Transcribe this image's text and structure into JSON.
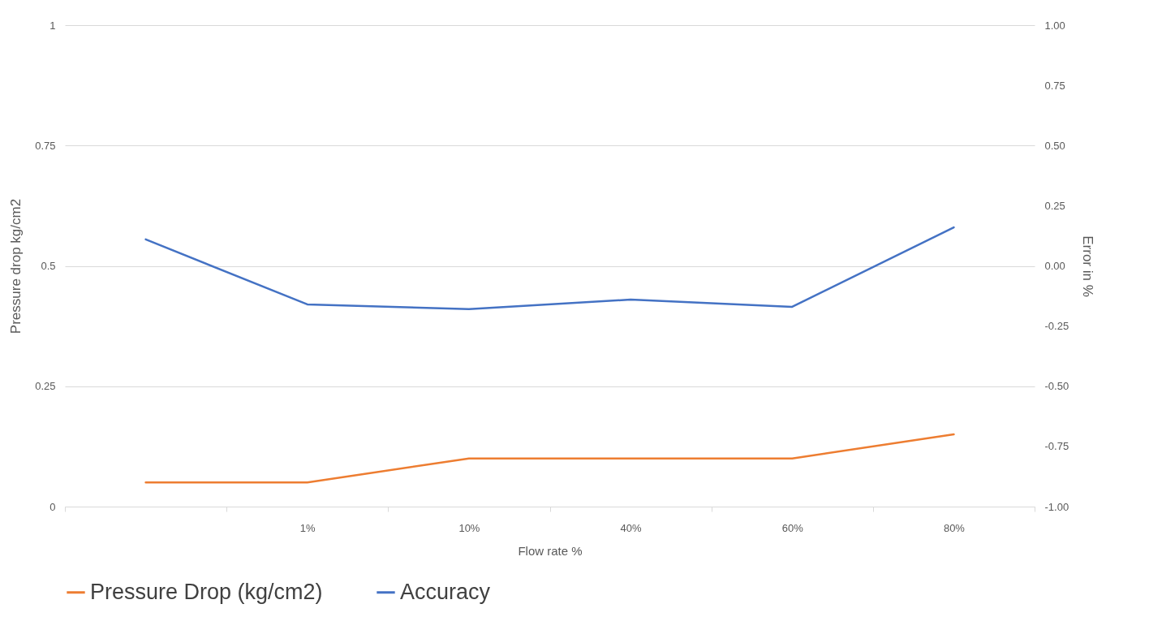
{
  "chart_data": {
    "type": "line",
    "xlabel": "Flow rate %",
    "ylabel": "Pressure drop kg/cm2",
    "y2label": "Error in %",
    "categories": [
      null,
      "1%",
      "10%",
      "40%",
      "60%",
      "80%"
    ],
    "series": [
      {
        "name": "Pressure Drop (kg/cm2)",
        "color": "#ed7d31",
        "values": [
          0.05,
          0.05,
          0.1,
          0.1,
          0.1,
          0.15
        ]
      },
      {
        "name": "Accuracy",
        "color": "#4472c4",
        "axis": "y2",
        "values": [
          0.11,
          -0.16,
          -0.18,
          -0.14,
          -0.17,
          0.16
        ]
      }
    ],
    "ylim": [
      0,
      1
    ],
    "yticks": [
      0,
      0.25,
      0.5,
      0.75,
      1
    ],
    "y2lim": [
      -1,
      1
    ],
    "y2ticks": [
      {
        "value": -1,
        "label": "-1.00"
      },
      {
        "value": -0.75,
        "label": "-0.75"
      },
      {
        "value": -0.5,
        "label": "-0.50"
      },
      {
        "value": -0.25,
        "label": "-0.25"
      },
      {
        "value": 0,
        "label": "0.00"
      },
      {
        "value": 0.25,
        "label": "0.25"
      },
      {
        "value": 0.5,
        "label": "0.50"
      },
      {
        "value": 0.75,
        "label": "0.75"
      },
      {
        "value": 1,
        "label": "1.00"
      }
    ],
    "grid": "y",
    "legend": "bottom",
    "line_style": "solid"
  }
}
